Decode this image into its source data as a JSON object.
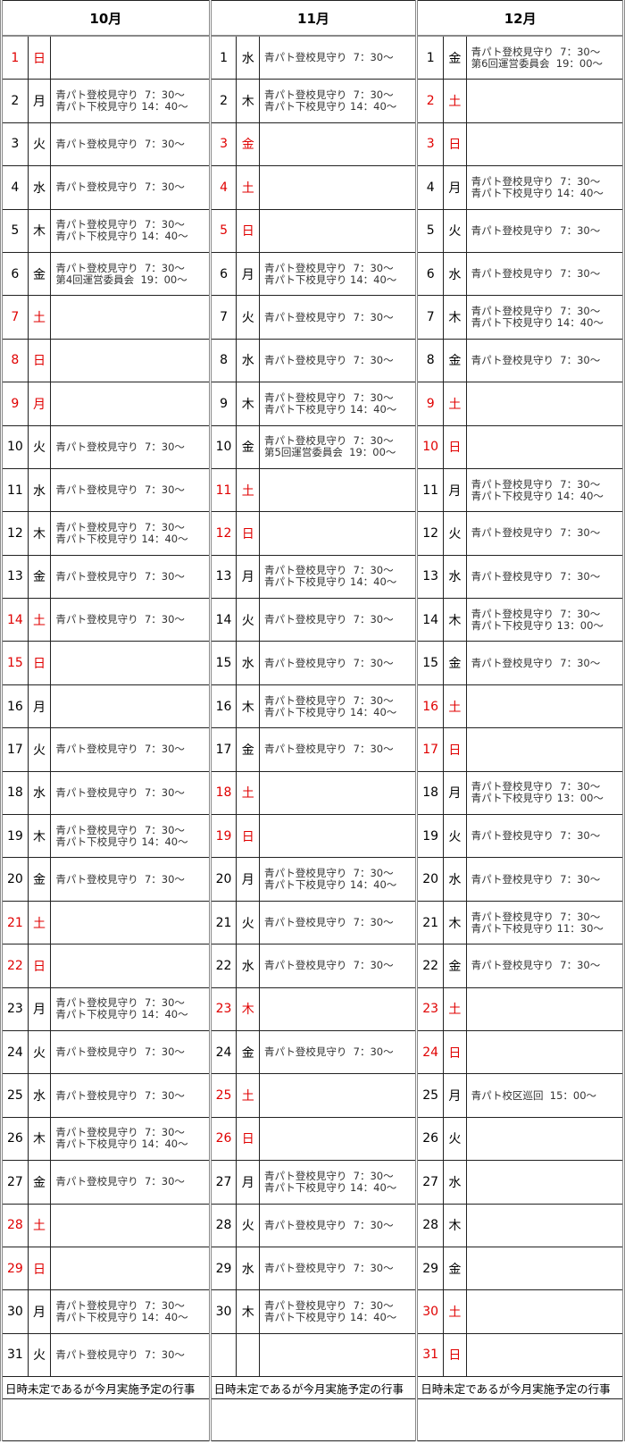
{
  "months": [
    {
      "title": "10月",
      "days": [
        {
          "d": "1",
          "w": "日",
          "red": true,
          "ev": []
        },
        {
          "d": "2",
          "w": "月",
          "ev": [
            "青パト登校見守り  7：30〜",
            "青パト下校見守り 14：40〜"
          ]
        },
        {
          "d": "3",
          "w": "火",
          "ev": [
            "青パト登校見守り  7：30〜"
          ]
        },
        {
          "d": "4",
          "w": "水",
          "ev": [
            "青パト登校見守り  7：30〜"
          ]
        },
        {
          "d": "5",
          "w": "木",
          "ev": [
            "青パト登校見守り  7：30〜",
            "青パト下校見守り 14：40〜"
          ]
        },
        {
          "d": "6",
          "w": "金",
          "ev": [
            "青パト登校見守り  7：30〜",
            "第4回運営委員会  19：00〜"
          ]
        },
        {
          "d": "7",
          "w": "土",
          "red": true,
          "ev": []
        },
        {
          "d": "8",
          "w": "日",
          "red": true,
          "ev": []
        },
        {
          "d": "9",
          "w": "月",
          "red": true,
          "ev": []
        },
        {
          "d": "10",
          "w": "火",
          "ev": [
            "青パト登校見守り  7：30〜"
          ]
        },
        {
          "d": "11",
          "w": "水",
          "ev": [
            "青パト登校見守り  7：30〜"
          ]
        },
        {
          "d": "12",
          "w": "木",
          "ev": [
            "青パト登校見守り  7：30〜",
            "青パト下校見守り 14：40〜"
          ]
        },
        {
          "d": "13",
          "w": "金",
          "ev": [
            "青パト登校見守り  7：30〜"
          ]
        },
        {
          "d": "14",
          "w": "土",
          "red": true,
          "ev": [
            "青パト登校見守り  7：30〜"
          ]
        },
        {
          "d": "15",
          "w": "日",
          "red": true,
          "ev": []
        },
        {
          "d": "16",
          "w": "月",
          "ev": []
        },
        {
          "d": "17",
          "w": "火",
          "ev": [
            "青パト登校見守り  7：30〜"
          ]
        },
        {
          "d": "18",
          "w": "水",
          "ev": [
            "青パト登校見守り  7：30〜"
          ]
        },
        {
          "d": "19",
          "w": "木",
          "ev": [
            "青パト登校見守り  7：30〜",
            "青パト下校見守り 14：40〜"
          ]
        },
        {
          "d": "20",
          "w": "金",
          "ev": [
            "青パト登校見守り  7：30〜"
          ]
        },
        {
          "d": "21",
          "w": "土",
          "red": true,
          "ev": []
        },
        {
          "d": "22",
          "w": "日",
          "red": true,
          "ev": []
        },
        {
          "d": "23",
          "w": "月",
          "ev": [
            "青パト登校見守り  7：30〜",
            "青パト下校見守り 14：40〜"
          ]
        },
        {
          "d": "24",
          "w": "火",
          "ev": [
            "青パト登校見守り  7：30〜"
          ]
        },
        {
          "d": "25",
          "w": "水",
          "ev": [
            "青パト登校見守り  7：30〜"
          ]
        },
        {
          "d": "26",
          "w": "木",
          "ev": [
            "青パト登校見守り  7：30〜",
            "青パト下校見守り 14：40〜"
          ]
        },
        {
          "d": "27",
          "w": "金",
          "ev": [
            "青パト登校見守り  7：30〜"
          ]
        },
        {
          "d": "28",
          "w": "土",
          "red": true,
          "ev": []
        },
        {
          "d": "29",
          "w": "日",
          "red": true,
          "ev": []
        },
        {
          "d": "30",
          "w": "月",
          "ev": [
            "青パト登校見守り  7：30〜",
            "青パト下校見守り 14：40〜"
          ]
        },
        {
          "d": "31",
          "w": "火",
          "ev": [
            "青パト登校見守り  7：30〜"
          ]
        }
      ],
      "footer": "日時未定であるが今月実施予定の行事"
    },
    {
      "title": "11月",
      "days": [
        {
          "d": "1",
          "w": "水",
          "ev": [
            "青パト登校見守り  7：30〜"
          ]
        },
        {
          "d": "2",
          "w": "木",
          "ev": [
            "青パト登校見守り  7：30〜",
            "青パト下校見守り 14：40〜"
          ]
        },
        {
          "d": "3",
          "w": "金",
          "red": true,
          "ev": []
        },
        {
          "d": "4",
          "w": "土",
          "red": true,
          "ev": []
        },
        {
          "d": "5",
          "w": "日",
          "red": true,
          "ev": []
        },
        {
          "d": "6",
          "w": "月",
          "ev": [
            "青パト登校見守り  7：30〜",
            "青パト下校見守り 14：40〜"
          ]
        },
        {
          "d": "7",
          "w": "火",
          "ev": [
            "青パト登校見守り  7：30〜"
          ]
        },
        {
          "d": "8",
          "w": "水",
          "ev": [
            "青パト登校見守り  7：30〜"
          ]
        },
        {
          "d": "9",
          "w": "木",
          "ev": [
            "青パト登校見守り  7：30〜",
            "青パト下校見守り 14：40〜"
          ]
        },
        {
          "d": "10",
          "w": "金",
          "ev": [
            "青パト登校見守り  7：30〜",
            "第5回運営委員会  19：00〜"
          ]
        },
        {
          "d": "11",
          "w": "土",
          "red": true,
          "ev": []
        },
        {
          "d": "12",
          "w": "日",
          "red": true,
          "ev": []
        },
        {
          "d": "13",
          "w": "月",
          "ev": [
            "青パト登校見守り  7：30〜",
            "青パト下校見守り 14：40〜"
          ]
        },
        {
          "d": "14",
          "w": "火",
          "ev": [
            "青パト登校見守り  7：30〜"
          ]
        },
        {
          "d": "15",
          "w": "水",
          "ev": [
            "青パト登校見守り  7：30〜"
          ]
        },
        {
          "d": "16",
          "w": "木",
          "ev": [
            "青パト登校見守り  7：30〜",
            "青パト下校見守り 14：40〜"
          ]
        },
        {
          "d": "17",
          "w": "金",
          "ev": [
            "青パト登校見守り  7：30〜"
          ]
        },
        {
          "d": "18",
          "w": "土",
          "red": true,
          "ev": []
        },
        {
          "d": "19",
          "w": "日",
          "red": true,
          "ev": []
        },
        {
          "d": "20",
          "w": "月",
          "ev": [
            "青パト登校見守り  7：30〜",
            "青パト下校見守り 14：40〜"
          ]
        },
        {
          "d": "21",
          "w": "火",
          "ev": [
            "青パト登校見守り  7：30〜"
          ]
        },
        {
          "d": "22",
          "w": "水",
          "ev": [
            "青パト登校見守り  7：30〜"
          ]
        },
        {
          "d": "23",
          "w": "木",
          "red": true,
          "ev": []
        },
        {
          "d": "24",
          "w": "金",
          "ev": [
            "青パト登校見守り  7：30〜"
          ]
        },
        {
          "d": "25",
          "w": "土",
          "red": true,
          "ev": []
        },
        {
          "d": "26",
          "w": "日",
          "red": true,
          "ev": []
        },
        {
          "d": "27",
          "w": "月",
          "ev": [
            "青パト登校見守り  7：30〜",
            "青パト下校見守り 14：40〜"
          ]
        },
        {
          "d": "28",
          "w": "火",
          "ev": [
            "青パト登校見守り  7：30〜"
          ]
        },
        {
          "d": "29",
          "w": "水",
          "ev": [
            "青パト登校見守り  7：30〜"
          ]
        },
        {
          "d": "30",
          "w": "木",
          "ev": [
            "青パト登校見守り  7：30〜",
            "青パト下校見守り 14：40〜"
          ]
        },
        {
          "d": "",
          "w": "",
          "ev": []
        }
      ],
      "footer": "日時未定であるが今月実施予定の行事"
    },
    {
      "title": "12月",
      "days": [
        {
          "d": "1",
          "w": "金",
          "ev": [
            "青パト登校見守り  7：30〜",
            "第6回運営委員会  19：00〜"
          ]
        },
        {
          "d": "2",
          "w": "土",
          "red": true,
          "ev": []
        },
        {
          "d": "3",
          "w": "日",
          "red": true,
          "ev": []
        },
        {
          "d": "4",
          "w": "月",
          "ev": [
            "青パト登校見守り  7：30〜",
            "青パト下校見守り 14：40〜"
          ]
        },
        {
          "d": "5",
          "w": "火",
          "ev": [
            "青パト登校見守り  7：30〜"
          ]
        },
        {
          "d": "6",
          "w": "水",
          "ev": [
            "青パト登校見守り  7：30〜"
          ]
        },
        {
          "d": "7",
          "w": "木",
          "ev": [
            "青パト登校見守り  7：30〜",
            "青パト下校見守り 14：40〜"
          ]
        },
        {
          "d": "8",
          "w": "金",
          "ev": [
            "青パト登校見守り  7：30〜"
          ]
        },
        {
          "d": "9",
          "w": "土",
          "red": true,
          "ev": []
        },
        {
          "d": "10",
          "w": "日",
          "red": true,
          "ev": []
        },
        {
          "d": "11",
          "w": "月",
          "ev": [
            "青パト登校見守り  7：30〜",
            "青パト下校見守り 14：40〜"
          ]
        },
        {
          "d": "12",
          "w": "火",
          "ev": [
            "青パト登校見守り  7：30〜"
          ]
        },
        {
          "d": "13",
          "w": "水",
          "ev": [
            "青パト登校見守り  7：30〜"
          ]
        },
        {
          "d": "14",
          "w": "木",
          "ev": [
            "青パト登校見守り  7：30〜",
            "青パト下校見守り 13：00〜"
          ]
        },
        {
          "d": "15",
          "w": "金",
          "ev": [
            "青パト登校見守り  7：30〜"
          ]
        },
        {
          "d": "16",
          "w": "土",
          "red": true,
          "ev": []
        },
        {
          "d": "17",
          "w": "日",
          "red": true,
          "ev": []
        },
        {
          "d": "18",
          "w": "月",
          "ev": [
            "青パト登校見守り  7：30〜",
            "青パト下校見守り 13：00〜"
          ]
        },
        {
          "d": "19",
          "w": "火",
          "ev": [
            "青パト登校見守り  7：30〜"
          ]
        },
        {
          "d": "20",
          "w": "水",
          "ev": [
            "青パト登校見守り  7：30〜"
          ]
        },
        {
          "d": "21",
          "w": "木",
          "ev": [
            "青パト登校見守り  7：30〜",
            "青パト下校見守り 11：30〜"
          ]
        },
        {
          "d": "22",
          "w": "金",
          "ev": [
            "青パト登校見守り  7：30〜"
          ]
        },
        {
          "d": "23",
          "w": "土",
          "red": true,
          "ev": []
        },
        {
          "d": "24",
          "w": "日",
          "red": true,
          "ev": []
        },
        {
          "d": "25",
          "w": "月",
          "ev": [
            "青パト校区巡回  15：00〜"
          ]
        },
        {
          "d": "26",
          "w": "火",
          "ev": []
        },
        {
          "d": "27",
          "w": "水",
          "ev": []
        },
        {
          "d": "28",
          "w": "木",
          "ev": []
        },
        {
          "d": "29",
          "w": "金",
          "ev": []
        },
        {
          "d": "30",
          "w": "土",
          "red": true,
          "ev": []
        },
        {
          "d": "31",
          "w": "日",
          "red": true,
          "ev": []
        }
      ],
      "footer": "日時未定であるが今月実施予定の行事"
    }
  ],
  "colors": {
    "holiday": "#e00000",
    "border": "#888888"
  }
}
